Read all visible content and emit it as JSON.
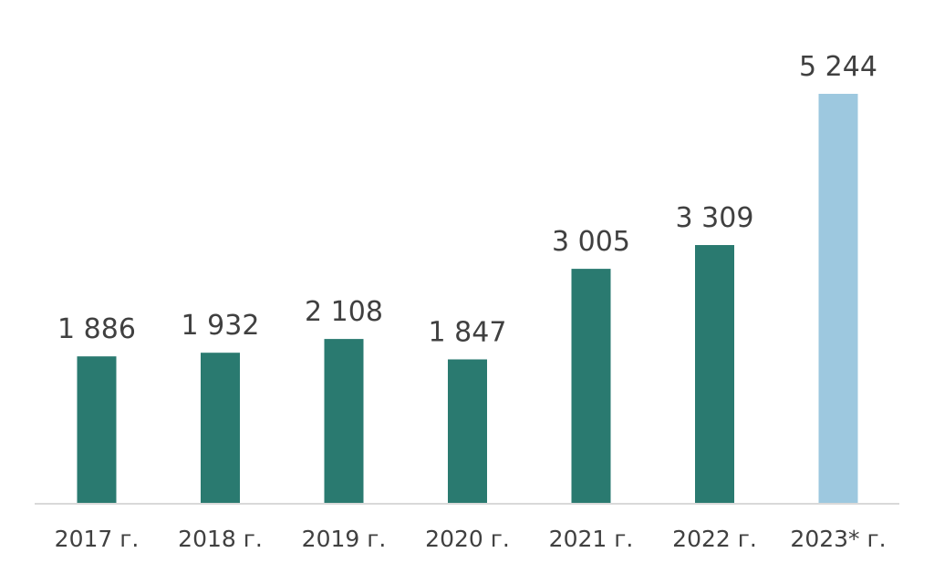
{
  "chart_data": {
    "type": "bar",
    "categories": [
      "2017 г.",
      "2018 г.",
      "2019 г.",
      "2020 г.",
      "2021 г.",
      "2022 г.",
      "2023* г."
    ],
    "values": [
      1886,
      1932,
      2108,
      1847,
      3005,
      3309,
      5244
    ],
    "data_labels": [
      "1 886",
      "1 932",
      "2 108",
      "1 847",
      "3 005",
      "3 309",
      "5 244"
    ],
    "bar_colors": [
      "#2a7a70",
      "#2a7a70",
      "#2a7a70",
      "#2a7a70",
      "#2a7a70",
      "#2a7a70",
      "#9dc8df"
    ],
    "axis_color": "#d9d9d9",
    "ylim": [
      0,
      5244
    ],
    "grid": false,
    "legend": "none"
  }
}
